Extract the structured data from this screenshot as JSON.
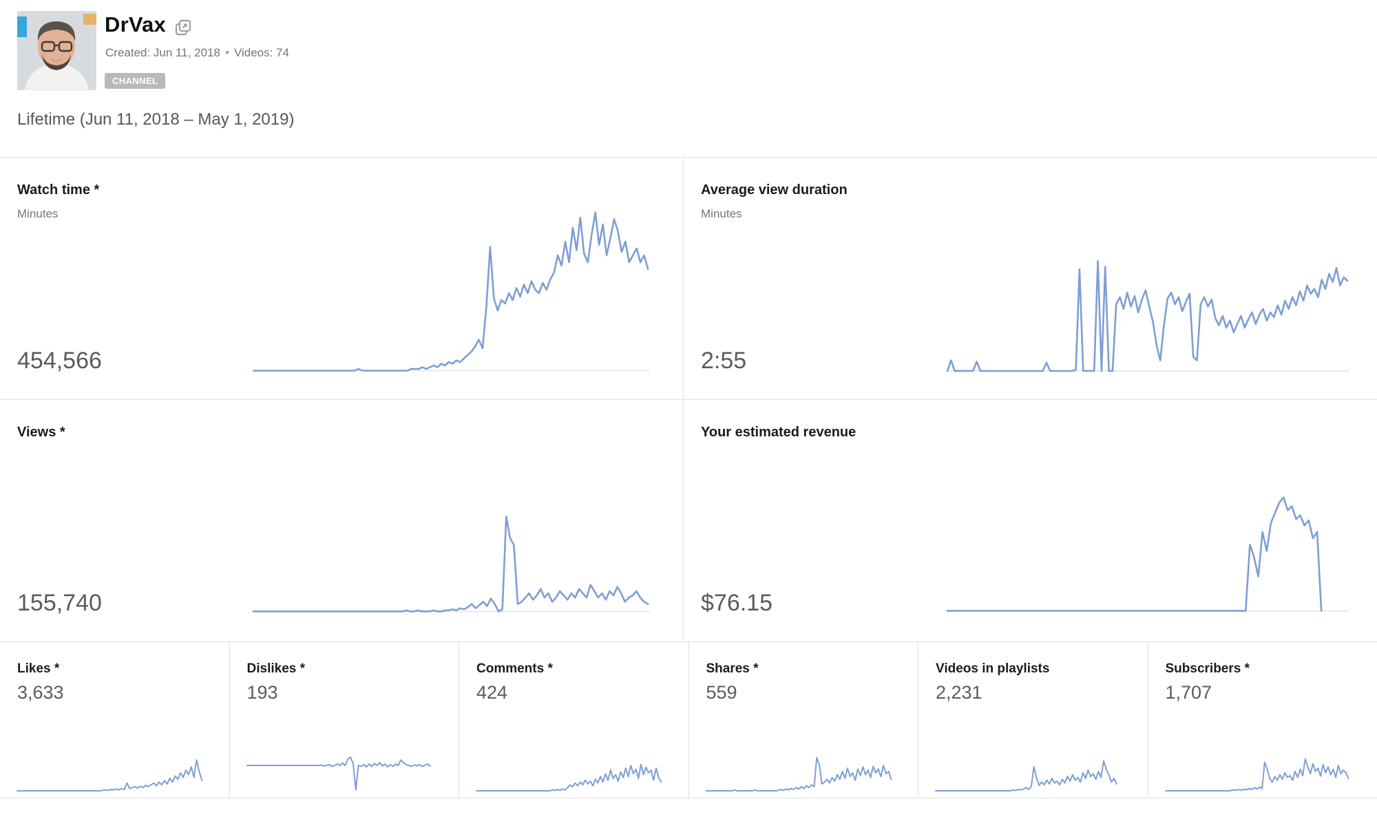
{
  "header": {
    "channel_name": "DrVax",
    "popout_icon": "popout-stacked-squares-icon",
    "created_label": "Created: Jun 11, 2018",
    "separator": "•",
    "videos_label": "Videos: 74",
    "badge": "CHANNEL"
  },
  "period_label": "Lifetime (Jun 11, 2018 – May 1, 2019)",
  "colors": {
    "sparkline": "#7d9ed5",
    "axis": "#e8e8e8",
    "divider": "#e0e0e0",
    "value_text": "#5b5b5b",
    "badge_bg": "#b7b9bb"
  },
  "metrics": {
    "watch_time": {
      "title": "Watch time *",
      "subtitle": "Minutes",
      "value": "454,566"
    },
    "avg_duration": {
      "title": "Average view duration",
      "subtitle": "Minutes",
      "value": "2:55"
    },
    "views": {
      "title": "Views *",
      "value": "155,740"
    },
    "revenue": {
      "title": "Your estimated revenue",
      "value": "$76.15"
    },
    "likes": {
      "title": "Likes *",
      "value": "3,633"
    },
    "dislikes": {
      "title": "Dislikes *",
      "value": "193"
    },
    "comments": {
      "title": "Comments *",
      "value": "424"
    },
    "shares": {
      "title": "Shares *",
      "value": "559"
    },
    "playlists": {
      "title": "Videos in playlists",
      "value": "2,231"
    },
    "subscribers": {
      "title": "Subscribers *",
      "value": "1,707"
    }
  },
  "chart_data": [
    {
      "id": "watch_time",
      "type": "line",
      "title": "Watch time (Minutes)",
      "total": "454,566",
      "x_range": "Jun 11, 2018 – May 1, 2019",
      "legend": "none",
      "grid": false,
      "axis_y": 97,
      "span": 0.995,
      "stroke_w": 2.6,
      "y_shape_norm": [
        97,
        97,
        97,
        97,
        97,
        97,
        97,
        97,
        97,
        97,
        97,
        97,
        97,
        97,
        97,
        97,
        97,
        97,
        97,
        97,
        97,
        97,
        97,
        97,
        97,
        97,
        97,
        97,
        96,
        97,
        97,
        97,
        97,
        97,
        97,
        97,
        97,
        97,
        97,
        97,
        97,
        97,
        96,
        96,
        96,
        95,
        96,
        95,
        94,
        95,
        93,
        94,
        92,
        93,
        91,
        92,
        90,
        88,
        86,
        83,
        79,
        84,
        60,
        25,
        55,
        62,
        56,
        58,
        52,
        56,
        49,
        54,
        47,
        52,
        45,
        50,
        52,
        46,
        50,
        44,
        40,
        30,
        36,
        22,
        34,
        14,
        27,
        8,
        29,
        34,
        18,
        5,
        24,
        12,
        30,
        20,
        9,
        16,
        28,
        22,
        34,
        30,
        26,
        34,
        30,
        38
      ]
    },
    {
      "id": "avg_duration",
      "type": "line",
      "title": "Average view duration (Minutes)",
      "total": "2:55",
      "x_range": "Jun 11, 2018 – May 1, 2019",
      "legend": "none",
      "grid": false,
      "axis_y": 97,
      "span": 0.995,
      "stroke_w": 2.6,
      "y_shape_norm": [
        97,
        88,
        97,
        97,
        97,
        97,
        97,
        97,
        89,
        97,
        97,
        97,
        97,
        97,
        97,
        97,
        97,
        97,
        97,
        97,
        97,
        97,
        97,
        97,
        97,
        97,
        97,
        90,
        97,
        97,
        97,
        97,
        97,
        97,
        97,
        96,
        10,
        97,
        97,
        97,
        97,
        3,
        97,
        8,
        97,
        97,
        40,
        34,
        44,
        30,
        42,
        33,
        47,
        36,
        28,
        42,
        55,
        75,
        88,
        58,
        35,
        30,
        40,
        34,
        46,
        38,
        31,
        85,
        88,
        40,
        34,
        42,
        36,
        52,
        58,
        50,
        60,
        54,
        64,
        57,
        50,
        60,
        53,
        47,
        57,
        49,
        44,
        54,
        47,
        51,
        41,
        49,
        37,
        44,
        34,
        41,
        29,
        37,
        24,
        31,
        27,
        34,
        19,
        27,
        14,
        21,
        9,
        24,
        17,
        20
      ]
    },
    {
      "id": "views",
      "type": "line",
      "title": "Views",
      "total": "155,740",
      "x_range": "Jun 11, 2018 – May 1, 2019",
      "legend": "none",
      "grid": false,
      "axis_y": 97,
      "span": 0.995,
      "stroke_w": 2.6,
      "y_shape_norm": [
        97,
        97,
        97,
        97,
        97,
        97,
        97,
        97,
        97,
        97,
        97,
        97,
        97,
        97,
        97,
        97,
        97,
        97,
        97,
        97,
        97,
        97,
        97,
        97,
        97,
        97,
        97,
        97,
        97,
        97,
        97,
        97,
        97,
        97,
        97,
        97,
        97,
        97,
        97,
        97,
        96,
        97,
        97,
        96,
        97,
        97,
        97,
        96,
        97,
        97,
        96,
        96,
        95,
        96,
        94,
        95,
        93,
        90,
        94,
        91,
        88,
        92,
        85,
        90,
        97,
        95,
        8,
        28,
        35,
        90,
        88,
        84,
        80,
        86,
        82,
        76,
        84,
        80,
        88,
        84,
        78,
        82,
        86,
        80,
        84,
        76,
        80,
        84,
        72,
        78,
        84,
        80,
        86,
        78,
        82,
        74,
        80,
        88,
        84,
        82,
        78,
        84,
        88,
        90
      ]
    },
    {
      "id": "revenue",
      "type": "line",
      "title": "Your estimated revenue (USD)",
      "total": "$76.15",
      "x_range": "Jun 11, 2018 – May 1, 2019",
      "legend": "none",
      "grid": false,
      "axis_y": 97,
      "span": 0.93,
      "stroke_w": 2.6,
      "y_shape_norm": [
        97,
        97,
        97,
        97,
        97,
        97,
        97,
        97,
        97,
        97,
        97,
        97,
        97,
        97,
        97,
        97,
        97,
        97,
        97,
        97,
        97,
        97,
        97,
        97,
        97,
        97,
        97,
        97,
        97,
        97,
        97,
        97,
        97,
        97,
        97,
        97,
        97,
        97,
        97,
        97,
        97,
        97,
        97,
        97,
        97,
        97,
        97,
        97,
        97,
        97,
        97,
        97,
        97,
        97,
        97,
        97,
        97,
        97,
        97,
        97,
        97,
        97,
        97,
        97,
        97,
        97,
        97,
        97,
        97,
        97,
        97,
        97,
        45,
        55,
        70,
        35,
        50,
        28,
        20,
        12,
        8,
        18,
        15,
        25,
        22,
        30,
        26,
        40,
        35,
        97
      ]
    },
    {
      "id": "likes",
      "type": "line",
      "title": "Likes",
      "total": "3,633",
      "x_range": "Jun 11, 2018 – May 1, 2019",
      "legend": "none",
      "grid": false,
      "axis_y": null,
      "span": 0.96,
      "stroke_w": 2,
      "y_shape_norm": [
        97,
        97,
        97,
        97,
        97,
        97,
        97,
        97,
        97,
        97,
        97,
        97,
        97,
        97,
        97,
        97,
        97,
        97,
        97,
        97,
        97,
        97,
        97,
        97,
        97,
        97,
        97,
        97,
        97,
        97,
        97,
        97,
        96,
        95,
        96,
        94,
        95,
        93,
        95,
        92,
        94,
        80,
        92,
        90,
        88,
        91,
        87,
        90,
        85,
        88,
        84,
        80,
        86,
        78,
        84,
        75,
        82,
        70,
        78,
        65,
        72,
        58,
        68,
        52,
        62,
        45,
        68,
        30,
        55,
        75
      ]
    },
    {
      "id": "dislikes",
      "type": "line",
      "title": "Dislikes",
      "total": "193",
      "x_range": "Jun 11, 2018 – May 1, 2019",
      "legend": "none",
      "grid": false,
      "axis_y": null,
      "span": 0.95,
      "stroke_w": 2,
      "y_shape_norm": [
        42,
        42,
        42,
        42,
        42,
        42,
        42,
        42,
        42,
        42,
        42,
        42,
        42,
        42,
        42,
        42,
        42,
        42,
        42,
        42,
        42,
        42,
        42,
        42,
        42,
        42,
        42,
        42,
        41,
        43,
        42,
        40,
        44,
        42,
        39,
        42,
        37,
        42,
        28,
        24,
        38,
        95,
        42,
        44,
        40,
        45,
        39,
        44,
        38,
        42,
        36,
        43,
        39,
        45,
        40,
        44,
        39,
        42,
        30,
        36,
        40,
        42,
        44,
        41,
        43,
        40,
        44,
        42,
        39,
        43
      ]
    },
    {
      "id": "comments",
      "type": "line",
      "title": "Comments",
      "total": "424",
      "x_range": "Jun 11, 2018 – May 1, 2019",
      "legend": "none",
      "grid": false,
      "axis_y": null,
      "span": 0.96,
      "stroke_w": 2,
      "y_shape_norm": [
        97,
        97,
        97,
        97,
        97,
        97,
        97,
        97,
        97,
        97,
        97,
        97,
        97,
        97,
        97,
        97,
        97,
        97,
        97,
        97,
        97,
        97,
        97,
        97,
        97,
        97,
        97,
        97,
        97,
        97,
        95,
        96,
        94,
        96,
        93,
        95,
        90,
        84,
        88,
        80,
        86,
        78,
        84,
        74,
        82,
        76,
        86,
        72,
        80,
        66,
        78,
        60,
        74,
        52,
        70,
        62,
        76,
        56,
        68,
        48,
        66,
        42,
        60,
        50,
        70,
        40,
        62,
        46,
        58,
        52,
        74,
        48,
        68,
        78
      ]
    },
    {
      "id": "shares",
      "type": "line",
      "title": "Shares",
      "total": "559",
      "x_range": "Jun 11, 2018 – May 1, 2019",
      "legend": "none",
      "grid": false,
      "axis_y": null,
      "span": 0.96,
      "stroke_w": 2,
      "y_shape_norm": [
        97,
        97,
        97,
        97,
        97,
        97,
        97,
        97,
        97,
        97,
        97,
        95,
        97,
        97,
        97,
        97,
        97,
        97,
        97,
        95,
        97,
        97,
        97,
        97,
        97,
        97,
        97,
        97,
        96,
        94,
        96,
        93,
        95,
        92,
        94,
        90,
        93,
        88,
        92,
        86,
        90,
        84,
        88,
        25,
        40,
        82,
        78,
        72,
        80,
        68,
        76,
        62,
        72,
        55,
        70,
        48,
        66,
        58,
        74,
        50,
        64,
        45,
        62,
        52,
        68,
        44,
        58,
        50,
        66,
        42,
        60,
        55,
        72
      ]
    },
    {
      "id": "playlists",
      "type": "line",
      "title": "Videos in playlists",
      "total": "2,231",
      "x_range": "Jun 11, 2018 – May 1, 2019",
      "legend": "none",
      "grid": false,
      "axis_y": null,
      "span": 0.94,
      "stroke_w": 2,
      "y_shape_norm": [
        97,
        97,
        97,
        97,
        97,
        97,
        97,
        97,
        97,
        97,
        97,
        97,
        97,
        97,
        97,
        97,
        97,
        97,
        97,
        97,
        97,
        97,
        97,
        97,
        97,
        97,
        97,
        97,
        97,
        97,
        95,
        96,
        94,
        95,
        93,
        90,
        94,
        88,
        45,
        68,
        85,
        78,
        84,
        74,
        82,
        70,
        80,
        76,
        84,
        72,
        80,
        66,
        76,
        62,
        74,
        68,
        78,
        58,
        70,
        52,
        66,
        60,
        72,
        55,
        68,
        32,
        50,
        62,
        78,
        70,
        82
      ]
    },
    {
      "id": "subscribers",
      "type": "line",
      "title": "Subscribers",
      "total": "1,707",
      "x_range": "Jun 11, 2018 – May 1, 2019",
      "legend": "none",
      "grid": false,
      "axis_y": null,
      "span": 0.95,
      "stroke_w": 2,
      "y_shape_norm": [
        97,
        97,
        97,
        97,
        97,
        97,
        97,
        97,
        97,
        97,
        97,
        97,
        97,
        97,
        97,
        97,
        97,
        97,
        97,
        97,
        97,
        97,
        97,
        97,
        97,
        97,
        96,
        95,
        96,
        94,
        96,
        93,
        95,
        92,
        94,
        90,
        93,
        89,
        92,
        35,
        50,
        70,
        78,
        66,
        74,
        62,
        72,
        58,
        68,
        64,
        74,
        55,
        68,
        50,
        64,
        28,
        45,
        60,
        38,
        55,
        48,
        65,
        40,
        58,
        45,
        62,
        50,
        68,
        42,
        60,
        52,
        58,
        70
      ]
    }
  ]
}
